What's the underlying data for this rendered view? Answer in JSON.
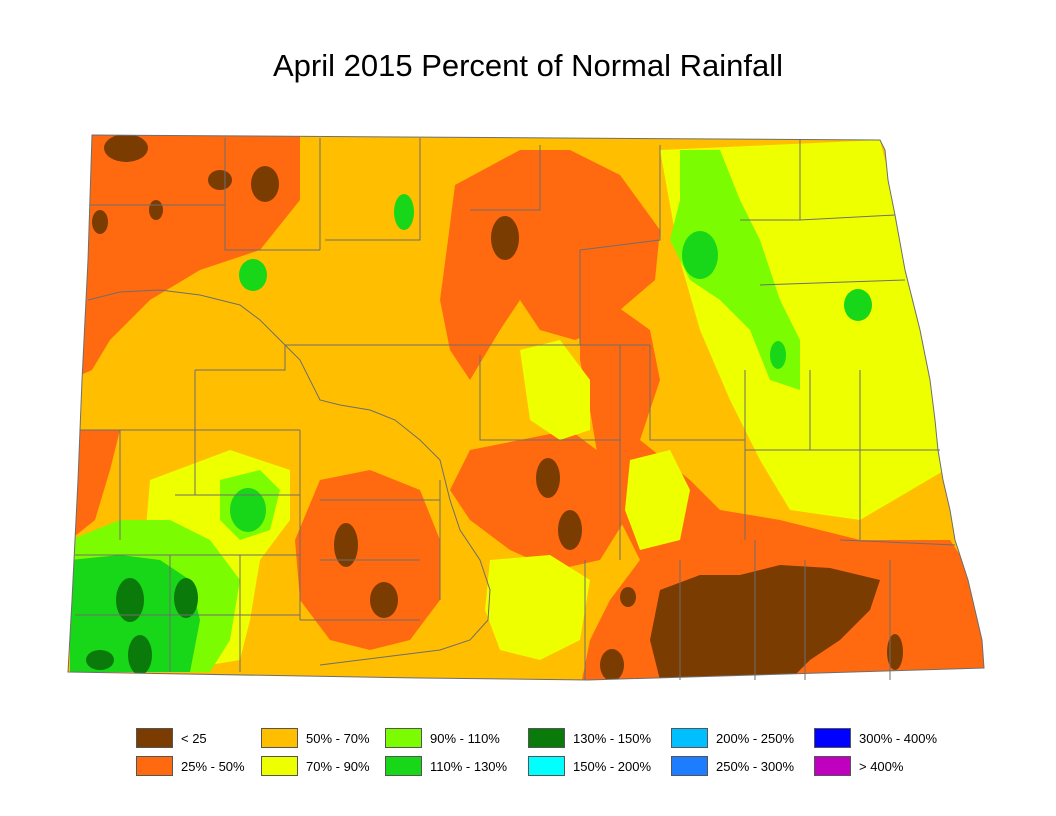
{
  "title": "April 2015 Percent of Normal Rainfall",
  "colors": {
    "background": "#ffffff",
    "county_lines": "#6e6e6e",
    "lt25": "#7a3c00",
    "p25_50": "#ff6a10",
    "p50_70": "#ffbe00",
    "p70_90": "#eeff00",
    "p90_110": "#7cfc00",
    "p110_130": "#18d618",
    "p130_150": "#0a7a0a",
    "p150_200": "#00ffff",
    "p200_250": "#00bfff",
    "p250_300": "#1e7cff",
    "p300_400": "#0000ff",
    "gt400": "#bf00bf"
  },
  "legend": [
    {
      "label": "< 25",
      "color": "#7a3c00"
    },
    {
      "label": "25% - 50%",
      "color": "#ff6a10"
    },
    {
      "label": "50% - 70%",
      "color": "#ffbe00"
    },
    {
      "label": "70% - 90%",
      "color": "#eeff00"
    },
    {
      "label": "90% - 110%",
      "color": "#7cfc00"
    },
    {
      "label": "110% - 130%",
      "color": "#18d618"
    },
    {
      "label": "130% - 150%",
      "color": "#0a7a0a"
    },
    {
      "label": "150% - 200%",
      "color": "#00ffff"
    },
    {
      "label": "200% - 250%",
      "color": "#00bfff"
    },
    {
      "label": "250% - 300%",
      "color": "#1e7cff"
    },
    {
      "label": "300% - 400%",
      "color": "#0000ff"
    },
    {
      "label": "> 400%",
      "color": "#bf00bf"
    }
  ]
}
